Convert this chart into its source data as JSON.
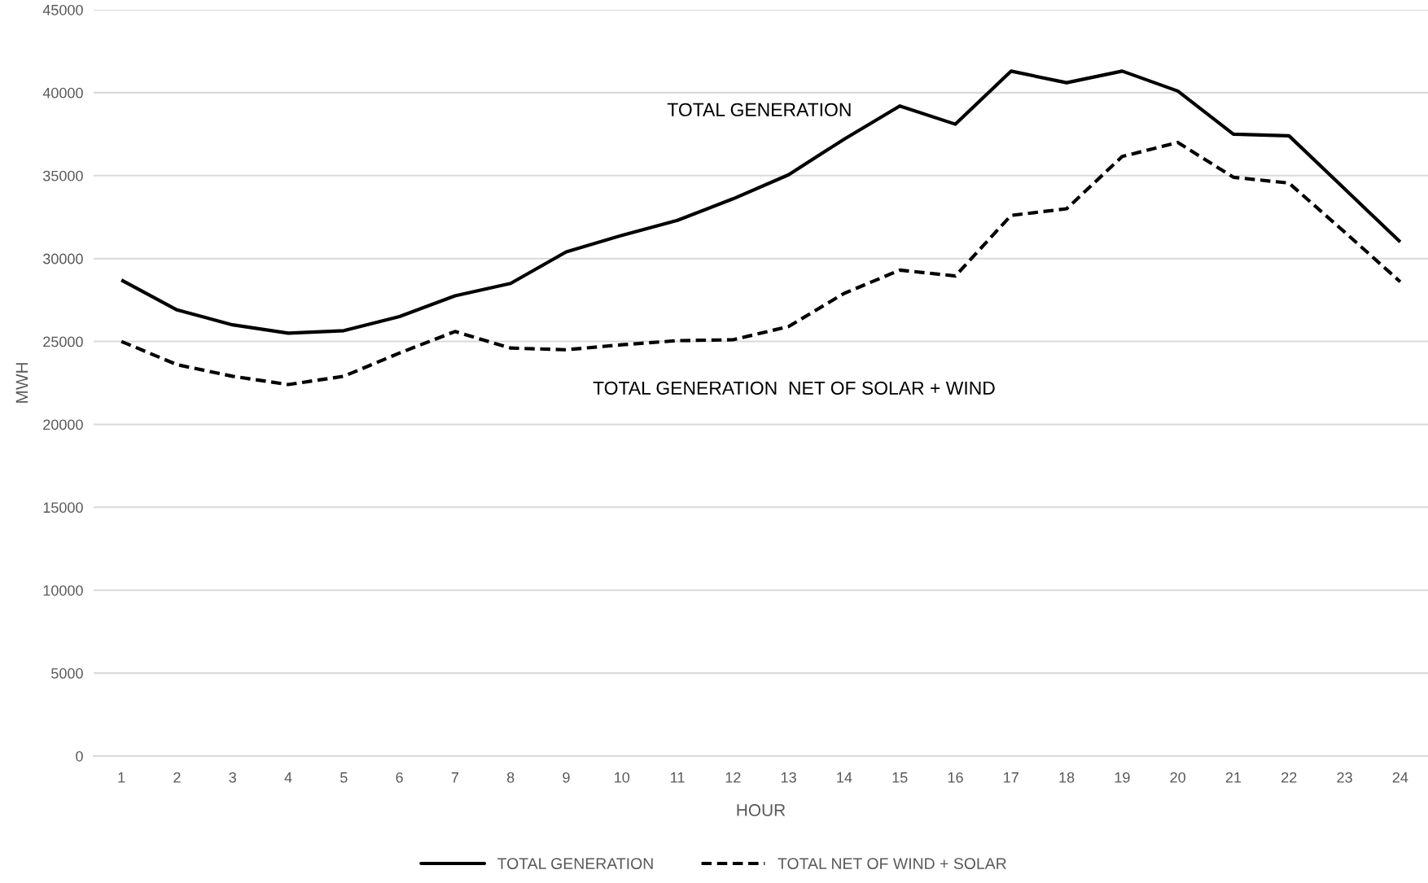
{
  "chart_data": {
    "type": "line",
    "xlabel": "HOUR",
    "ylabel": "MWH",
    "categories": [
      "1",
      "2",
      "3",
      "4",
      "5",
      "6",
      "7",
      "8",
      "9",
      "10",
      "11",
      "12",
      "13",
      "14",
      "15",
      "16",
      "17",
      "18",
      "19",
      "20",
      "21",
      "22",
      "23",
      "24"
    ],
    "series": [
      {
        "name": "TOTAL GENERATION",
        "color": "#000000",
        "line_style": "solid",
        "values": [
          28700,
          26900,
          26000,
          25500,
          25650,
          26500,
          27750,
          28500,
          30400,
          31400,
          32300,
          33600,
          35050,
          37200,
          39200,
          38100,
          41300,
          40600,
          41300,
          40100,
          37500,
          37400,
          34200,
          31000
        ]
      },
      {
        "name": "TOTAL NET OF WIND + SOLAR",
        "color": "#000000",
        "line_style": "dashed",
        "values": [
          25000,
          23600,
          22900,
          22400,
          22900,
          24300,
          25600,
          24600,
          24500,
          24800,
          25050,
          25100,
          25900,
          27900,
          29300,
          28950,
          32600,
          33000,
          36150,
          37000,
          34900,
          34550,
          31600,
          28600
        ]
      }
    ],
    "annotations": [
      "TOTAL GENERATION",
      "TOTAL GENERATION  NET OF SOLAR + WIND"
    ],
    "ylim": [
      0,
      45000
    ],
    "yticks": [
      0,
      5000,
      10000,
      15000,
      20000,
      25000,
      30000,
      35000,
      40000,
      45000
    ],
    "grid": "y",
    "legend": "bottom"
  }
}
